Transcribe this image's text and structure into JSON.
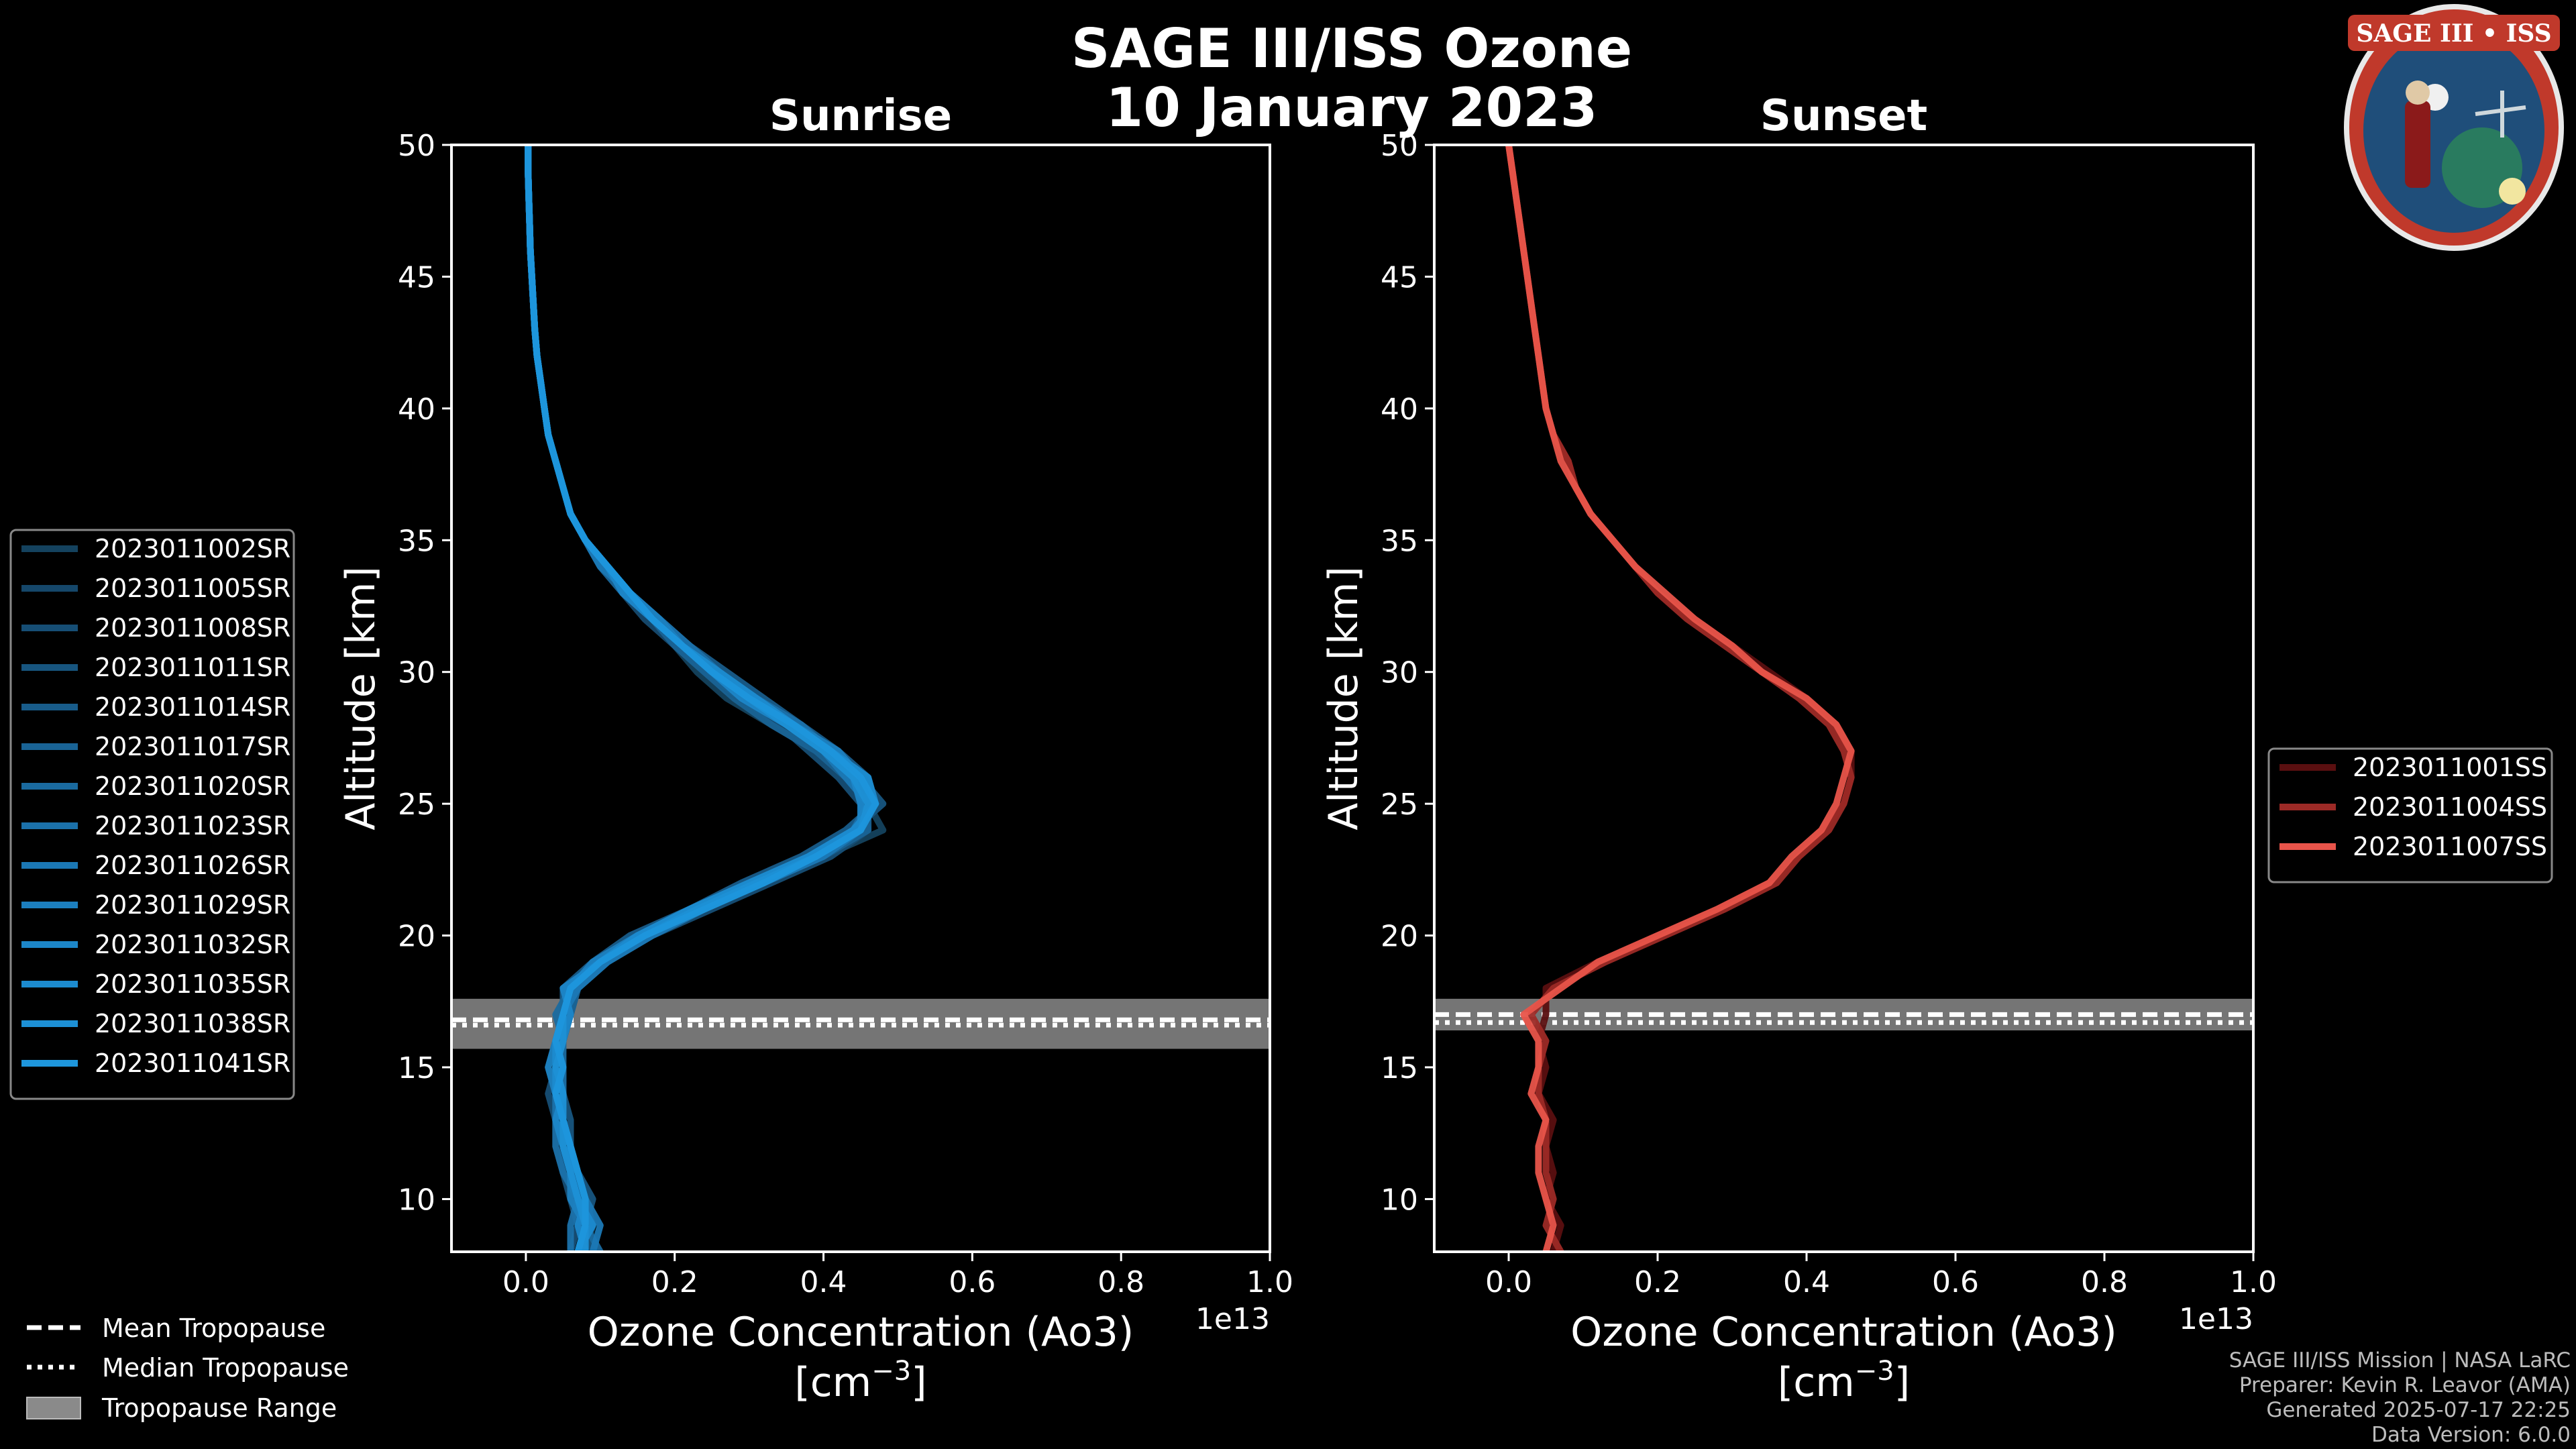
{
  "title_line1": "SAGE III/ISS Ozone",
  "title_line2": "10 January 2023",
  "logo_text": "SAGE III • ISS",
  "colors": {
    "background": "#000000",
    "sunrise": "#1a8fd0",
    "sunset": "#e8544a",
    "tropopause_band": "#8a8a8a"
  },
  "chart_data": [
    {
      "type": "line",
      "title": "Sunrise",
      "xlabel": "Ozone Concentration (Ao3)",
      "xunits_base": "[cm",
      "xunits_exp": "−3",
      "xunits_close": "]",
      "ylabel": "Altitude [km]",
      "x_scale_label": "1e13",
      "xlim": [
        -0.1,
        1.0
      ],
      "ylim": [
        8,
        50
      ],
      "xticks": [
        "0.0",
        "0.2",
        "0.4",
        "0.6",
        "0.8",
        "1.0"
      ],
      "yticks": [
        "10",
        "15",
        "20",
        "25",
        "30",
        "35",
        "40",
        "45",
        "50"
      ],
      "tropopause": {
        "mean": 16.8,
        "median": 16.6,
        "min": 15.7,
        "max": 17.6
      },
      "altitudes": [
        8,
        9,
        10,
        11,
        12,
        13,
        14,
        15,
        16,
        17,
        18,
        19,
        20,
        21,
        22,
        23,
        24,
        25,
        26,
        27,
        28,
        29,
        30,
        31,
        32,
        33,
        34,
        35,
        36,
        37,
        38,
        39,
        40,
        41,
        42,
        43,
        44,
        45,
        46,
        47,
        48,
        49,
        50
      ],
      "series": [
        {
          "name": "2023011002SR",
          "color": "#14425e",
          "values": [
            0.08,
            0.09,
            0.08,
            0.07,
            0.06,
            0.05,
            0.05,
            0.04,
            0.05,
            0.06,
            0.05,
            0.1,
            0.16,
            0.24,
            0.32,
            0.4,
            0.48,
            0.46,
            0.43,
            0.39,
            0.33,
            0.27,
            0.23,
            0.2,
            0.16,
            0.13,
            0.11,
            0.08,
            0.06,
            0.05,
            0.04,
            0.03,
            0.025,
            0.02,
            0.015,
            0.012,
            0.01,
            0.008,
            0.006,
            0.005,
            0.004,
            0.003,
            0.003
          ]
        },
        {
          "name": "2023011005SR",
          "color": "#15476a",
          "values": [
            0.07,
            0.08,
            0.07,
            0.06,
            0.05,
            0.05,
            0.04,
            0.04,
            0.04,
            0.05,
            0.06,
            0.09,
            0.15,
            0.23,
            0.31,
            0.39,
            0.45,
            0.47,
            0.44,
            0.4,
            0.35,
            0.29,
            0.24,
            0.2,
            0.16,
            0.13,
            0.1,
            0.08,
            0.06,
            0.05,
            0.04,
            0.03,
            0.025,
            0.02,
            0.015,
            0.012,
            0.01,
            0.008,
            0.006,
            0.005,
            0.004,
            0.003,
            0.003
          ]
        },
        {
          "name": "2023011008SR",
          "color": "#164e75",
          "values": [
            0.06,
            0.07,
            0.06,
            0.05,
            0.05,
            0.04,
            0.03,
            0.04,
            0.05,
            0.06,
            0.07,
            0.11,
            0.17,
            0.25,
            0.33,
            0.41,
            0.46,
            0.45,
            0.42,
            0.38,
            0.34,
            0.29,
            0.25,
            0.21,
            0.17,
            0.14,
            0.11,
            0.08,
            0.06,
            0.05,
            0.04,
            0.03,
            0.025,
            0.02,
            0.015,
            0.012,
            0.01,
            0.008,
            0.006,
            0.005,
            0.004,
            0.003,
            0.003
          ]
        },
        {
          "name": "2023011011SR",
          "color": "#17557f",
          "values": [
            0.09,
            0.08,
            0.09,
            0.07,
            0.06,
            0.06,
            0.05,
            0.05,
            0.04,
            0.05,
            0.06,
            0.1,
            0.15,
            0.22,
            0.3,
            0.38,
            0.44,
            0.48,
            0.45,
            0.41,
            0.36,
            0.31,
            0.26,
            0.21,
            0.17,
            0.14,
            0.11,
            0.08,
            0.06,
            0.05,
            0.04,
            0.03,
            0.025,
            0.02,
            0.015,
            0.012,
            0.01,
            0.008,
            0.006,
            0.005,
            0.004,
            0.003,
            0.003
          ]
        },
        {
          "name": "2023011014SR",
          "color": "#185c8a",
          "values": [
            0.07,
            0.09,
            0.08,
            0.06,
            0.05,
            0.04,
            0.05,
            0.04,
            0.05,
            0.05,
            0.05,
            0.09,
            0.14,
            0.22,
            0.29,
            0.37,
            0.43,
            0.47,
            0.46,
            0.42,
            0.37,
            0.32,
            0.27,
            0.22,
            0.18,
            0.14,
            0.11,
            0.08,
            0.06,
            0.05,
            0.04,
            0.03,
            0.025,
            0.02,
            0.015,
            0.012,
            0.01,
            0.008,
            0.006,
            0.005,
            0.004,
            0.003,
            0.003
          ]
        },
        {
          "name": "2023011017SR",
          "color": "#196395",
          "values": [
            0.08,
            0.07,
            0.07,
            0.07,
            0.06,
            0.05,
            0.04,
            0.03,
            0.04,
            0.06,
            0.07,
            0.11,
            0.16,
            0.24,
            0.32,
            0.4,
            0.46,
            0.46,
            0.43,
            0.39,
            0.33,
            0.28,
            0.24,
            0.2,
            0.17,
            0.13,
            0.1,
            0.08,
            0.06,
            0.05,
            0.04,
            0.03,
            0.025,
            0.02,
            0.015,
            0.012,
            0.01,
            0.008,
            0.006,
            0.005,
            0.004,
            0.003,
            0.003
          ]
        },
        {
          "name": "2023011020SR",
          "color": "#1a6a9f",
          "values": [
            0.1,
            0.08,
            0.07,
            0.06,
            0.06,
            0.05,
            0.05,
            0.05,
            0.05,
            0.04,
            0.06,
            0.1,
            0.16,
            0.23,
            0.31,
            0.39,
            0.45,
            0.47,
            0.44,
            0.41,
            0.36,
            0.3,
            0.25,
            0.21,
            0.17,
            0.13,
            0.11,
            0.08,
            0.06,
            0.05,
            0.04,
            0.03,
            0.025,
            0.02,
            0.015,
            0.012,
            0.01,
            0.008,
            0.006,
            0.005,
            0.004,
            0.003,
            0.003
          ]
        },
        {
          "name": "2023011023SR",
          "color": "#1b71aa",
          "values": [
            0.06,
            0.06,
            0.07,
            0.05,
            0.04,
            0.04,
            0.04,
            0.04,
            0.05,
            0.05,
            0.06,
            0.1,
            0.15,
            0.22,
            0.3,
            0.38,
            0.44,
            0.46,
            0.46,
            0.41,
            0.37,
            0.31,
            0.26,
            0.22,
            0.18,
            0.14,
            0.11,
            0.08,
            0.06,
            0.05,
            0.04,
            0.03,
            0.025,
            0.02,
            0.015,
            0.012,
            0.01,
            0.008,
            0.006,
            0.005,
            0.004,
            0.003,
            0.003
          ]
        },
        {
          "name": "2023011026SR",
          "color": "#1b78b5",
          "values": [
            0.09,
            0.1,
            0.08,
            0.07,
            0.06,
            0.05,
            0.04,
            0.05,
            0.04,
            0.05,
            0.07,
            0.11,
            0.17,
            0.24,
            0.32,
            0.4,
            0.45,
            0.46,
            0.43,
            0.4,
            0.35,
            0.3,
            0.26,
            0.21,
            0.17,
            0.14,
            0.1,
            0.08,
            0.06,
            0.05,
            0.04,
            0.03,
            0.025,
            0.02,
            0.015,
            0.012,
            0.01,
            0.008,
            0.006,
            0.005,
            0.004,
            0.003,
            0.003
          ]
        },
        {
          "name": "2023011029SR",
          "color": "#1c7fbf",
          "values": [
            0.07,
            0.08,
            0.06,
            0.06,
            0.05,
            0.05,
            0.04,
            0.03,
            0.04,
            0.05,
            0.06,
            0.09,
            0.15,
            0.23,
            0.31,
            0.38,
            0.44,
            0.47,
            0.45,
            0.42,
            0.36,
            0.31,
            0.25,
            0.21,
            0.18,
            0.14,
            0.11,
            0.08,
            0.06,
            0.05,
            0.04,
            0.03,
            0.025,
            0.02,
            0.015,
            0.012,
            0.01,
            0.008,
            0.006,
            0.005,
            0.004,
            0.003,
            0.003
          ]
        },
        {
          "name": "2023011032SR",
          "color": "#1c86c8",
          "values": [
            0.08,
            0.07,
            0.08,
            0.07,
            0.05,
            0.04,
            0.05,
            0.04,
            0.05,
            0.06,
            0.05,
            0.1,
            0.16,
            0.23,
            0.31,
            0.39,
            0.45,
            0.45,
            0.44,
            0.4,
            0.35,
            0.29,
            0.25,
            0.21,
            0.17,
            0.13,
            0.11,
            0.08,
            0.06,
            0.05,
            0.04,
            0.03,
            0.025,
            0.02,
            0.015,
            0.012,
            0.01,
            0.008,
            0.006,
            0.005,
            0.004,
            0.003,
            0.003
          ]
        },
        {
          "name": "2023011035SR",
          "color": "#1c8bcf",
          "values": [
            0.07,
            0.09,
            0.07,
            0.06,
            0.06,
            0.05,
            0.04,
            0.04,
            0.04,
            0.05,
            0.06,
            0.1,
            0.15,
            0.22,
            0.3,
            0.38,
            0.44,
            0.47,
            0.46,
            0.41,
            0.36,
            0.31,
            0.26,
            0.21,
            0.17,
            0.14,
            0.11,
            0.08,
            0.06,
            0.05,
            0.04,
            0.03,
            0.025,
            0.02,
            0.015,
            0.012,
            0.01,
            0.008,
            0.006,
            0.005,
            0.004,
            0.003,
            0.003
          ]
        },
        {
          "name": "2023011038SR",
          "color": "#1d90d5",
          "values": [
            0.08,
            0.08,
            0.07,
            0.06,
            0.05,
            0.05,
            0.05,
            0.04,
            0.05,
            0.05,
            0.06,
            0.1,
            0.16,
            0.23,
            0.31,
            0.39,
            0.45,
            0.46,
            0.44,
            0.4,
            0.35,
            0.3,
            0.25,
            0.21,
            0.17,
            0.14,
            0.11,
            0.08,
            0.06,
            0.05,
            0.04,
            0.03,
            0.025,
            0.02,
            0.015,
            0.012,
            0.01,
            0.008,
            0.006,
            0.005,
            0.004,
            0.003,
            0.003
          ]
        },
        {
          "name": "2023011041SR",
          "color": "#1e96dc",
          "values": [
            0.07,
            0.08,
            0.08,
            0.07,
            0.06,
            0.05,
            0.04,
            0.05,
            0.04,
            0.05,
            0.06,
            0.1,
            0.16,
            0.24,
            0.32,
            0.39,
            0.45,
            0.47,
            0.45,
            0.41,
            0.36,
            0.3,
            0.25,
            0.21,
            0.17,
            0.14,
            0.11,
            0.08,
            0.06,
            0.05,
            0.04,
            0.03,
            0.025,
            0.02,
            0.015,
            0.012,
            0.01,
            0.008,
            0.006,
            0.005,
            0.004,
            0.003,
            0.003
          ]
        }
      ]
    },
    {
      "type": "line",
      "title": "Sunset",
      "xlabel": "Ozone Concentration (Ao3)",
      "xunits_base": "[cm",
      "xunits_exp": "−3",
      "xunits_close": "]",
      "ylabel": "Altitude [km]",
      "x_scale_label": "1e13",
      "xlim": [
        -0.1,
        1.0
      ],
      "ylim": [
        8,
        50
      ],
      "xticks": [
        "0.0",
        "0.2",
        "0.4",
        "0.6",
        "0.8",
        "1.0"
      ],
      "yticks": [
        "10",
        "15",
        "20",
        "25",
        "30",
        "35",
        "40",
        "45",
        "50"
      ],
      "tropopause": {
        "mean": 17.0,
        "median": 16.7,
        "min": 16.4,
        "max": 17.6
      },
      "altitudes": [
        8,
        9,
        10,
        11,
        12,
        13,
        14,
        15,
        16,
        17,
        18,
        19,
        20,
        21,
        22,
        23,
        24,
        25,
        26,
        27,
        28,
        29,
        30,
        31,
        32,
        33,
        34,
        35,
        36,
        37,
        38,
        39,
        40,
        41,
        42,
        43,
        44,
        45,
        46,
        47,
        48,
        49,
        50
      ],
      "series": [
        {
          "name": "2023011001SS",
          "color": "#5a0f10",
          "values": [
            0.06,
            0.07,
            0.05,
            0.06,
            0.05,
            0.06,
            0.04,
            0.05,
            0.04,
            0.05,
            0.05,
            0.12,
            0.2,
            0.28,
            0.35,
            0.39,
            0.42,
            0.45,
            0.46,
            0.46,
            0.44,
            0.4,
            0.35,
            0.3,
            0.25,
            0.2,
            0.17,
            0.14,
            0.11,
            0.09,
            0.08,
            0.06,
            0.05,
            0.045,
            0.04,
            0.035,
            0.03,
            0.025,
            0.02,
            0.015,
            0.01,
            0.005,
            0.0
          ]
        },
        {
          "name": "2023011004SS",
          "color": "#9c2a26",
          "values": [
            0.07,
            0.05,
            0.06,
            0.05,
            0.05,
            0.05,
            0.04,
            0.04,
            0.05,
            0.03,
            0.06,
            0.13,
            0.21,
            0.29,
            0.36,
            0.39,
            0.43,
            0.45,
            0.46,
            0.45,
            0.43,
            0.39,
            0.34,
            0.29,
            0.24,
            0.2,
            0.17,
            0.14,
            0.11,
            0.09,
            0.08,
            0.06,
            0.05,
            0.045,
            0.04,
            0.035,
            0.03,
            0.025,
            0.02,
            0.015,
            0.01,
            0.005,
            0.0
          ]
        },
        {
          "name": "2023011007SS",
          "color": "#e8544a",
          "values": [
            0.05,
            0.06,
            0.05,
            0.04,
            0.04,
            0.05,
            0.03,
            0.04,
            0.04,
            0.02,
            0.07,
            0.12,
            0.2,
            0.28,
            0.35,
            0.38,
            0.42,
            0.44,
            0.45,
            0.46,
            0.44,
            0.4,
            0.34,
            0.3,
            0.25,
            0.21,
            0.17,
            0.14,
            0.11,
            0.09,
            0.07,
            0.06,
            0.05,
            0.045,
            0.04,
            0.035,
            0.03,
            0.025,
            0.02,
            0.015,
            0.01,
            0.005,
            0.0
          ]
        }
      ]
    }
  ],
  "tropopause_legend": {
    "mean": "Mean Tropopause",
    "median": "Median Tropopause",
    "range": "Tropopause Range"
  },
  "credits": [
    "SAGE III/ISS Mission | NASA LaRC",
    "Preparer: Kevin R. Leavor (AMA)",
    "Generated 2025-07-17 22:25",
    "Data Version: 6.0.0"
  ]
}
